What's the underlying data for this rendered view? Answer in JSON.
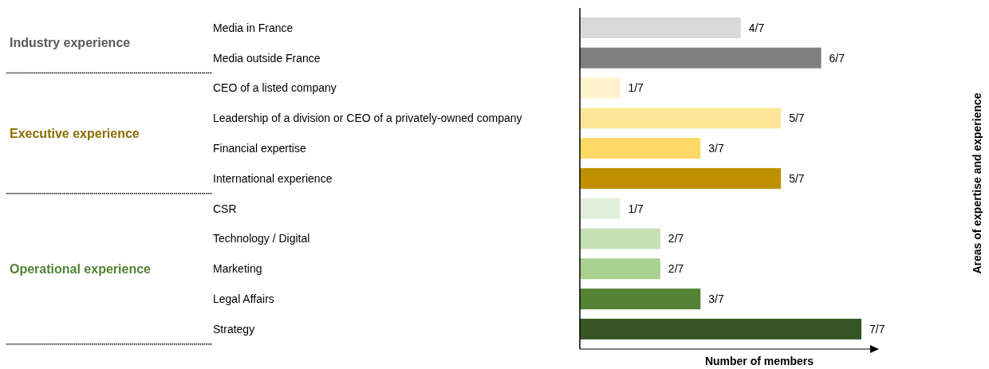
{
  "chart_data": {
    "type": "bar",
    "orientation": "horizontal",
    "xlabel": "Number of members",
    "categories": [
      "Media in France",
      "Media outside France",
      "CEO of a listed company",
      "Leadership of a division or CEO of a privately-owned company",
      "Financial expertise",
      "International experience",
      "CSR",
      "Technology / Digital",
      "Marketing",
      "Legal Affairs",
      "Strategy"
    ],
    "values": [
      4,
      6,
      1,
      5,
      3,
      5,
      1,
      2,
      2,
      3,
      7
    ],
    "value_labels": [
      "4/7",
      "6/7",
      "1/7",
      "5/7",
      "3/7",
      "5/7",
      "1/7",
      "2/7",
      "2/7",
      "3/7",
      "7/7"
    ],
    "colors": [
      "#d9d9d9",
      "#808080",
      "#fff2cc",
      "#ffe699",
      "#ffd966",
      "#bf9000",
      "#e2efda",
      "#c6e0b4",
      "#a9d08e",
      "#548235",
      "#375623"
    ],
    "annotations": [
      "Industry experience",
      "Executive experience",
      "Operational experience",
      "Areas of expertise and experience"
    ]
  }
}
